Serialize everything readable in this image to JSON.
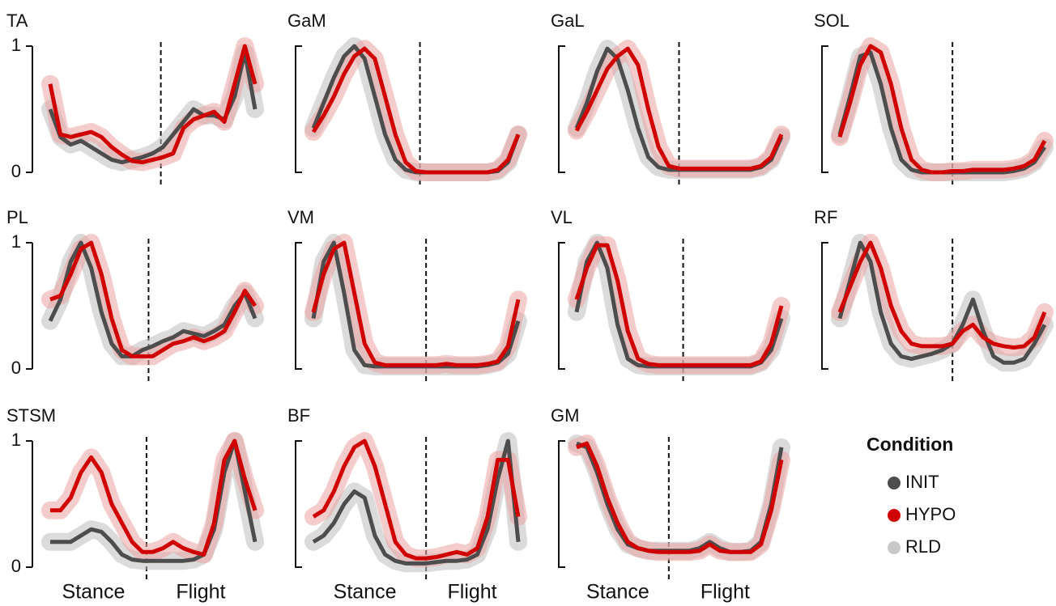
{
  "chart_data": [
    {
      "type": "line",
      "title": "TA",
      "x": [
        0,
        5,
        10,
        15,
        20,
        25,
        30,
        35,
        40,
        45,
        50,
        55,
        60,
        65,
        70,
        75,
        80,
        85,
        90,
        95,
        100
      ],
      "xlim": [
        0,
        100
      ],
      "ylim": [
        0,
        1
      ],
      "yticks": [
        0,
        1
      ],
      "vlines": [
        54
      ],
      "series": [
        {
          "name": "INIT",
          "color": "#4d4d4d",
          "values": [
            0.5,
            0.28,
            0.22,
            0.25,
            0.2,
            0.15,
            0.1,
            0.08,
            0.1,
            0.12,
            0.15,
            0.2,
            0.3,
            0.4,
            0.5,
            0.45,
            0.45,
            0.42,
            0.6,
            0.95,
            0.5
          ]
        },
        {
          "name": "HYPO",
          "color": "#d00000",
          "values": [
            0.7,
            0.3,
            0.28,
            0.3,
            0.32,
            0.28,
            0.2,
            0.14,
            0.09,
            0.08,
            0.1,
            0.12,
            0.15,
            0.35,
            0.42,
            0.45,
            0.48,
            0.4,
            0.7,
            1.0,
            0.7
          ]
        }
      ]
    },
    {
      "type": "line",
      "title": "GaM",
      "x": [
        0,
        5,
        10,
        15,
        20,
        25,
        30,
        35,
        40,
        45,
        50,
        55,
        60,
        65,
        70,
        75,
        80,
        85,
        90,
        95,
        100
      ],
      "xlim": [
        0,
        100
      ],
      "ylim": [
        0,
        1
      ],
      "vlines": [
        52
      ],
      "series": [
        {
          "name": "INIT",
          "color": "#4d4d4d",
          "values": [
            0.35,
            0.55,
            0.75,
            0.92,
            1.0,
            0.9,
            0.6,
            0.3,
            0.1,
            0.02,
            0,
            0,
            0,
            0,
            0,
            0,
            0,
            0,
            0.01,
            0.08,
            0.3
          ]
        },
        {
          "name": "HYPO",
          "color": "#d00000",
          "values": [
            0.32,
            0.45,
            0.6,
            0.78,
            0.92,
            0.98,
            0.9,
            0.6,
            0.3,
            0.08,
            0.01,
            0,
            0,
            0,
            0,
            0,
            0,
            0,
            0.02,
            0.1,
            0.3
          ]
        }
      ]
    },
    {
      "type": "line",
      "title": "GaL",
      "x": [
        0,
        5,
        10,
        15,
        20,
        25,
        30,
        35,
        40,
        45,
        50,
        55,
        60,
        65,
        70,
        75,
        80,
        85,
        90,
        95,
        100
      ],
      "xlim": [
        0,
        100
      ],
      "ylim": [
        0,
        1
      ],
      "vlines": [
        50
      ],
      "series": [
        {
          "name": "INIT",
          "color": "#4d4d4d",
          "values": [
            0.35,
            0.55,
            0.8,
            0.98,
            0.9,
            0.65,
            0.35,
            0.12,
            0.04,
            0.02,
            0.02,
            0.02,
            0.02,
            0.02,
            0.02,
            0.02,
            0.02,
            0.02,
            0.04,
            0.1,
            0.28
          ]
        },
        {
          "name": "HYPO",
          "color": "#d00000",
          "values": [
            0.33,
            0.48,
            0.65,
            0.82,
            0.92,
            0.98,
            0.85,
            0.5,
            0.2,
            0.05,
            0.03,
            0.03,
            0.03,
            0.03,
            0.03,
            0.03,
            0.03,
            0.03,
            0.05,
            0.12,
            0.3
          ]
        }
      ]
    },
    {
      "type": "line",
      "title": "SOL",
      "x": [
        0,
        5,
        10,
        15,
        20,
        25,
        30,
        35,
        40,
        45,
        50,
        55,
        60,
        65,
        70,
        75,
        80,
        85,
        90,
        95,
        100
      ],
      "xlim": [
        0,
        100
      ],
      "ylim": [
        0,
        1
      ],
      "vlines": [
        55
      ],
      "series": [
        {
          "name": "INIT",
          "color": "#4d4d4d",
          "values": [
            0.3,
            0.6,
            0.92,
            0.95,
            0.7,
            0.35,
            0.1,
            0.02,
            0,
            0,
            0,
            0,
            0,
            0,
            0,
            0,
            0,
            0.01,
            0.03,
            0.08,
            0.2
          ]
        },
        {
          "name": "HYPO",
          "color": "#d00000",
          "values": [
            0.28,
            0.55,
            0.85,
            1.0,
            0.95,
            0.7,
            0.35,
            0.1,
            0.02,
            0,
            0,
            0.01,
            0.01,
            0.02,
            0.02,
            0.02,
            0.02,
            0.03,
            0.05,
            0.1,
            0.25
          ]
        }
      ]
    },
    {
      "type": "line",
      "title": "PL",
      "x": [
        0,
        5,
        10,
        15,
        20,
        25,
        30,
        35,
        40,
        45,
        50,
        55,
        60,
        65,
        70,
        75,
        80,
        85,
        90,
        95,
        100
      ],
      "xlim": [
        0,
        100
      ],
      "ylim": [
        0,
        1
      ],
      "yticks": [
        0,
        1
      ],
      "vlines": [
        48
      ],
      "series": [
        {
          "name": "INIT",
          "color": "#4d4d4d",
          "values": [
            0.38,
            0.55,
            0.85,
            1.0,
            0.8,
            0.45,
            0.2,
            0.1,
            0.1,
            0.15,
            0.18,
            0.22,
            0.25,
            0.3,
            0.28,
            0.26,
            0.3,
            0.35,
            0.5,
            0.6,
            0.4
          ]
        },
        {
          "name": "HYPO",
          "color": "#d00000",
          "values": [
            0.55,
            0.58,
            0.75,
            0.95,
            1.0,
            0.75,
            0.4,
            0.15,
            0.1,
            0.1,
            0.1,
            0.15,
            0.2,
            0.22,
            0.25,
            0.22,
            0.25,
            0.3,
            0.45,
            0.62,
            0.5
          ]
        }
      ]
    },
    {
      "type": "line",
      "title": "VM",
      "x": [
        0,
        5,
        10,
        15,
        20,
        25,
        30,
        35,
        40,
        45,
        50,
        55,
        60,
        65,
        70,
        75,
        80,
        85,
        90,
        95,
        100
      ],
      "xlim": [
        0,
        100
      ],
      "ylim": [
        0,
        1
      ],
      "vlines": [
        55
      ],
      "series": [
        {
          "name": "INIT",
          "color": "#4d4d4d",
          "values": [
            0.4,
            0.85,
            1.0,
            0.6,
            0.15,
            0.03,
            0.02,
            0.02,
            0.02,
            0.02,
            0.02,
            0.02,
            0.02,
            0.02,
            0.02,
            0.02,
            0.02,
            0.03,
            0.05,
            0.12,
            0.38
          ]
        },
        {
          "name": "HYPO",
          "color": "#d00000",
          "values": [
            0.45,
            0.75,
            0.95,
            1.0,
            0.6,
            0.2,
            0.05,
            0.03,
            0.03,
            0.03,
            0.03,
            0.03,
            0.03,
            0.04,
            0.03,
            0.03,
            0.03,
            0.04,
            0.06,
            0.18,
            0.55
          ]
        }
      ]
    },
    {
      "type": "line",
      "title": "VL",
      "x": [
        0,
        5,
        10,
        15,
        20,
        25,
        30,
        35,
        40,
        45,
        50,
        55,
        60,
        65,
        70,
        75,
        80,
        85,
        90,
        95,
        100
      ],
      "xlim": [
        0,
        100
      ],
      "ylim": [
        0,
        1
      ],
      "vlines": [
        52
      ],
      "series": [
        {
          "name": "INIT",
          "color": "#4d4d4d",
          "values": [
            0.45,
            0.85,
            1.0,
            0.8,
            0.35,
            0.08,
            0.03,
            0.02,
            0.02,
            0.02,
            0.02,
            0.02,
            0.02,
            0.02,
            0.02,
            0.02,
            0.02,
            0.02,
            0.05,
            0.15,
            0.4
          ]
        },
        {
          "name": "HYPO",
          "color": "#d00000",
          "values": [
            0.55,
            0.8,
            0.98,
            0.98,
            0.7,
            0.3,
            0.08,
            0.04,
            0.03,
            0.03,
            0.03,
            0.03,
            0.03,
            0.03,
            0.03,
            0.03,
            0.03,
            0.03,
            0.06,
            0.2,
            0.5
          ]
        }
      ]
    },
    {
      "type": "line",
      "title": "RF",
      "x": [
        0,
        5,
        10,
        15,
        20,
        25,
        30,
        35,
        40,
        45,
        50,
        55,
        60,
        65,
        70,
        75,
        80,
        85,
        90,
        95,
        100
      ],
      "xlim": [
        0,
        100
      ],
      "ylim": [
        0,
        1
      ],
      "vlines": [
        55
      ],
      "series": [
        {
          "name": "INIT",
          "color": "#4d4d4d",
          "values": [
            0.4,
            0.7,
            1.0,
            0.85,
            0.45,
            0.2,
            0.1,
            0.08,
            0.1,
            0.12,
            0.15,
            0.2,
            0.35,
            0.55,
            0.3,
            0.1,
            0.05,
            0.05,
            0.08,
            0.2,
            0.35
          ]
        },
        {
          "name": "HYPO",
          "color": "#d00000",
          "values": [
            0.45,
            0.65,
            0.85,
            1.0,
            0.8,
            0.5,
            0.3,
            0.2,
            0.18,
            0.18,
            0.18,
            0.2,
            0.3,
            0.35,
            0.25,
            0.2,
            0.18,
            0.17,
            0.18,
            0.25,
            0.45
          ]
        }
      ]
    },
    {
      "type": "line",
      "title": "STSM",
      "x": [
        0,
        5,
        10,
        15,
        20,
        25,
        30,
        35,
        40,
        45,
        50,
        55,
        60,
        65,
        70,
        75,
        80,
        85,
        90,
        95,
        100
      ],
      "xlim": [
        0,
        100
      ],
      "ylim": [
        0,
        1
      ],
      "yticks": [
        0,
        1
      ],
      "vlines": [
        47
      ],
      "xlabels": [
        "Stance",
        "Flight"
      ],
      "series": [
        {
          "name": "INIT",
          "color": "#4d4d4d",
          "values": [
            0.2,
            0.2,
            0.2,
            0.25,
            0.3,
            0.28,
            0.2,
            0.1,
            0.06,
            0.05,
            0.05,
            0.05,
            0.05,
            0.05,
            0.06,
            0.1,
            0.3,
            0.75,
            1.0,
            0.6,
            0.2
          ]
        },
        {
          "name": "HYPO",
          "color": "#d00000",
          "values": [
            0.45,
            0.45,
            0.55,
            0.75,
            0.87,
            0.75,
            0.5,
            0.35,
            0.2,
            0.12,
            0.12,
            0.15,
            0.2,
            0.15,
            0.12,
            0.1,
            0.35,
            0.85,
            1.0,
            0.7,
            0.45
          ]
        }
      ]
    },
    {
      "type": "line",
      "title": "BF",
      "x": [
        0,
        5,
        10,
        15,
        20,
        25,
        30,
        35,
        40,
        45,
        50,
        55,
        60,
        65,
        70,
        75,
        80,
        85,
        90,
        95,
        100
      ],
      "xlim": [
        0,
        100
      ],
      "ylim": [
        0,
        1
      ],
      "vlines": [
        55
      ],
      "xlabels": [
        "Stance",
        "Flight"
      ],
      "series": [
        {
          "name": "INIT",
          "color": "#4d4d4d",
          "values": [
            0.2,
            0.25,
            0.35,
            0.5,
            0.6,
            0.55,
            0.25,
            0.1,
            0.05,
            0.03,
            0.03,
            0.03,
            0.04,
            0.05,
            0.05,
            0.06,
            0.1,
            0.3,
            0.7,
            1.0,
            0.2
          ]
        },
        {
          "name": "HYPO",
          "color": "#d00000",
          "values": [
            0.4,
            0.45,
            0.6,
            0.8,
            0.95,
            1.0,
            0.8,
            0.5,
            0.2,
            0.1,
            0.07,
            0.07,
            0.08,
            0.1,
            0.12,
            0.1,
            0.15,
            0.4,
            0.85,
            0.85,
            0.4
          ]
        }
      ]
    },
    {
      "type": "line",
      "title": "GM",
      "x": [
        0,
        5,
        10,
        15,
        20,
        25,
        30,
        35,
        40,
        45,
        50,
        55,
        60,
        65,
        70,
        75,
        80,
        85,
        90,
        95,
        100
      ],
      "xlim": [
        0,
        100
      ],
      "ylim": [
        0,
        1
      ],
      "vlines": [
        45
      ],
      "xlabels": [
        "Stance",
        "Flight"
      ],
      "series": [
        {
          "name": "INIT",
          "color": "#4d4d4d",
          "values": [
            0.98,
            0.95,
            0.75,
            0.5,
            0.3,
            0.18,
            0.15,
            0.13,
            0.13,
            0.13,
            0.13,
            0.13,
            0.15,
            0.2,
            0.15,
            0.12,
            0.12,
            0.13,
            0.2,
            0.5,
            0.95
          ]
        },
        {
          "name": "HYPO",
          "color": "#d00000",
          "values": [
            0.95,
            0.98,
            0.8,
            0.55,
            0.35,
            0.2,
            0.15,
            0.13,
            0.12,
            0.12,
            0.12,
            0.12,
            0.13,
            0.18,
            0.13,
            0.12,
            0.12,
            0.12,
            0.18,
            0.45,
            0.85
          ]
        }
      ]
    }
  ],
  "legend": {
    "title": "Condition",
    "items": [
      {
        "name": "INIT",
        "color": "#4d4d4d"
      },
      {
        "name": "HYPO",
        "color": "#d00000"
      },
      {
        "name": "RLD",
        "color": "#c8c8c8"
      }
    ]
  }
}
